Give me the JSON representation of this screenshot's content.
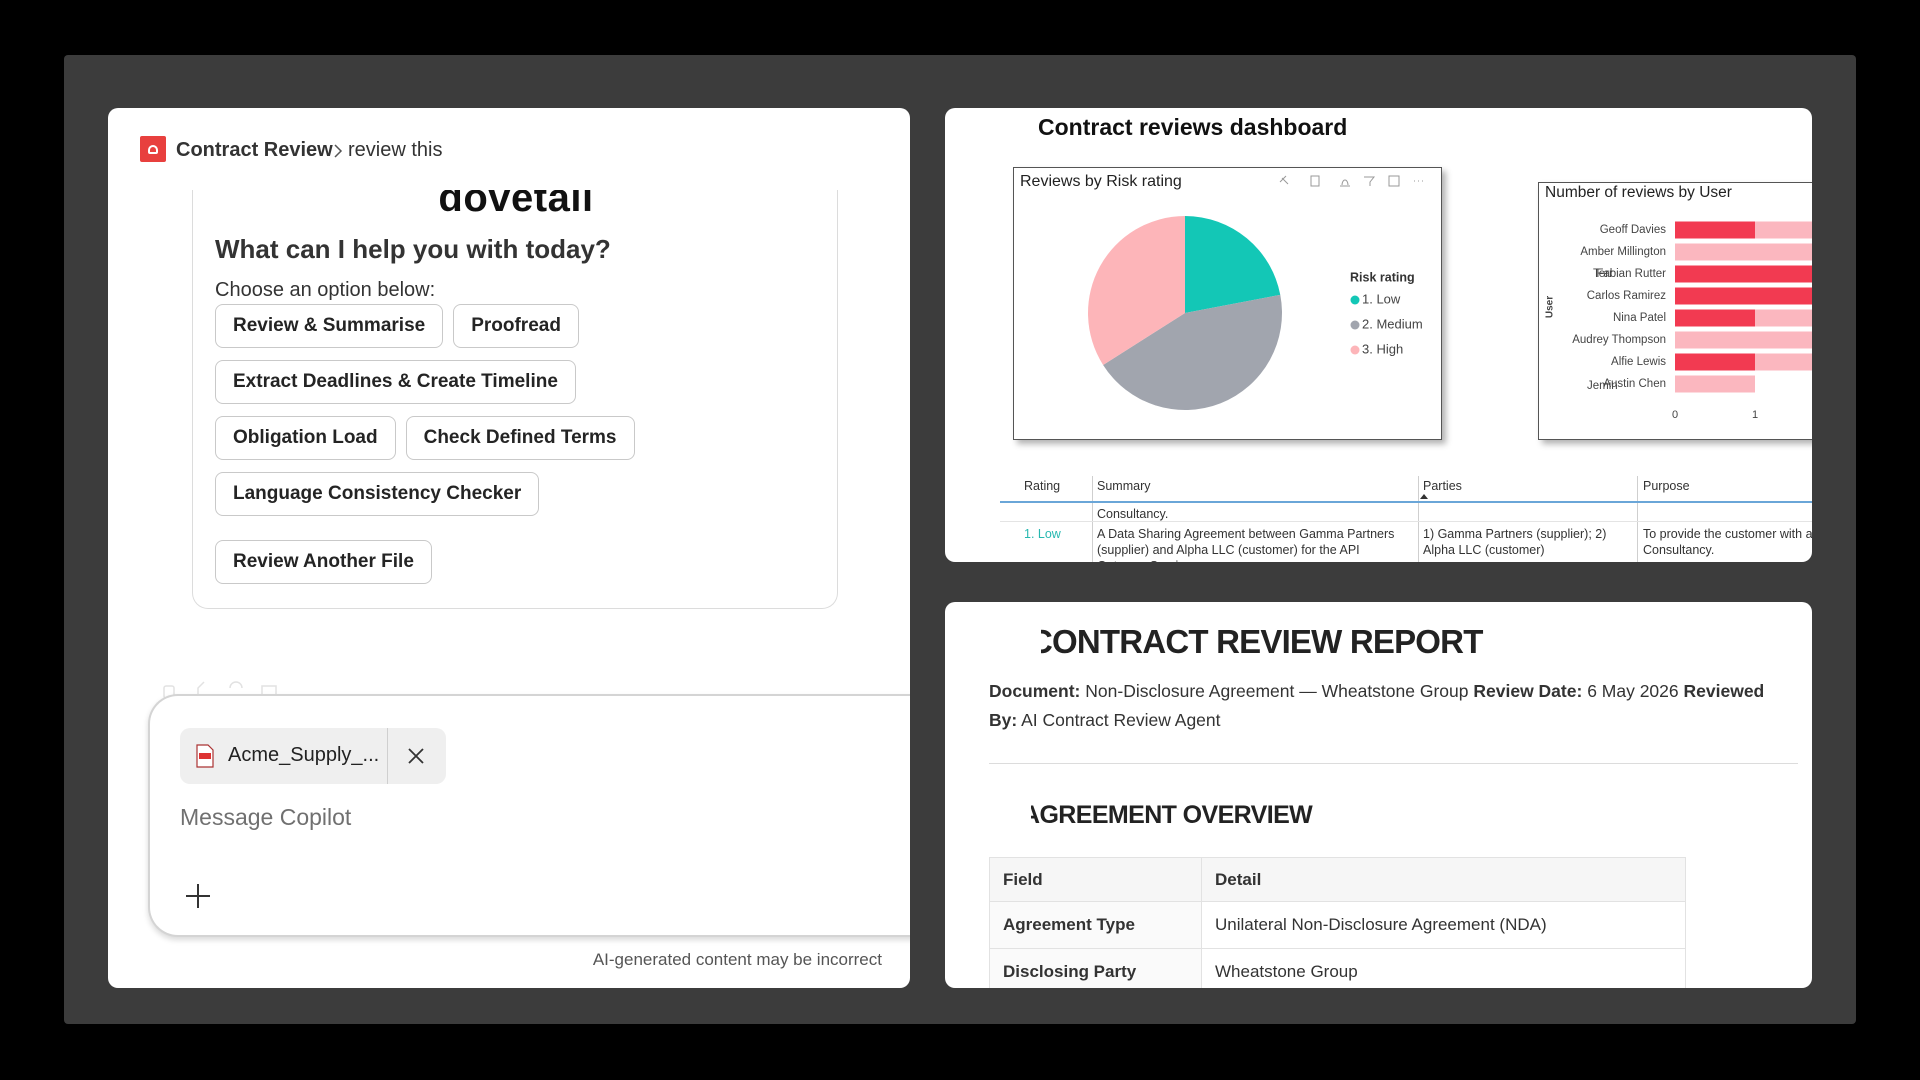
{
  "copilot": {
    "app": "Contract Review",
    "breadcrumb": "review this",
    "logo": "dovetail",
    "prompt": "What can I help you with today?",
    "instruction": "Choose an option below:",
    "options": [
      "Review & Summarise",
      "Proofread",
      "Extract Deadlines & Create Timeline",
      "Obligation Load",
      "Check Defined Terms",
      "Language Consistency Checker"
    ],
    "secondary_option": "Review Another File",
    "attachment": "Acme_Supply_...",
    "input_placeholder": "Message Copilot",
    "disclaimer": "AI-generated content may be incorrect"
  },
  "dashboard": {
    "title": "Contract reviews dashboard",
    "risk_chart": {
      "type": "pie",
      "title": "Reviews by Risk rating",
      "legend_title": "Risk rating",
      "categories": [
        "1. Low",
        "2. Medium",
        "3. High"
      ],
      "values": [
        22,
        44,
        34
      ],
      "colors": [
        "#13c7b6",
        "#a1a5ae",
        "#fdb5b9"
      ]
    },
    "user_chart": {
      "type": "bar",
      "orientation": "horizontal",
      "title": "Number of reviews by User",
      "y_label": "User",
      "categories": [
        "Geoff Davies",
        "Amber Millington",
        "Fabian Rutter",
        "Carlos Ramirez",
        "Nina Patel",
        "Audrey Thompson",
        "Alfie Lewis",
        "Austin Chen"
      ],
      "stray_labels": [
        "Terr",
        "Jemin"
      ],
      "series": [
        {
          "color": "#f23a51",
          "values": [
            1,
            0,
            2,
            2,
            1,
            0,
            1,
            0
          ]
        },
        {
          "color": "#fbb7bf",
          "values": [
            1,
            2,
            0,
            0,
            1,
            2,
            1,
            1
          ]
        }
      ],
      "xlim": [
        0,
        2
      ],
      "xticks": [
        0,
        1
      ]
    },
    "table": {
      "columns": [
        "Rating",
        "Summary",
        "Parties",
        "Purpose"
      ],
      "rows": [
        {
          "summary": "Consultancy."
        },
        {
          "rating": "1. Low",
          "summary": "A Data Sharing Agreement between Gamma Partners (supplier) and Alpha LLC (customer) for the API Gateway Service.",
          "parties": "1) Gamma Partners (supplier); 2) Alpha LLC (customer)",
          "purpose": [
            "To provide the customer with ac",
            "Consultancy."
          ]
        }
      ]
    }
  },
  "report": {
    "title": "CONTRACT REVIEW REPORT",
    "meta": [
      {
        "label": "Document:",
        "value": "Non-Disclosure Agreement — Wheatstone Group"
      },
      {
        "label": "Review Date:",
        "value": "6 May 2026"
      },
      {
        "label": "Reviewed By:",
        "value": "AI Contract Review Agent"
      }
    ],
    "section": "AGREEMENT OVERVIEW",
    "table": {
      "columns": [
        "Field",
        "Detail"
      ],
      "rows": [
        [
          "Agreement Type",
          "Unilateral Non-Disclosure Agreement (NDA)"
        ],
        [
          "Disclosing Party",
          "Wheatstone Group"
        ]
      ]
    }
  }
}
